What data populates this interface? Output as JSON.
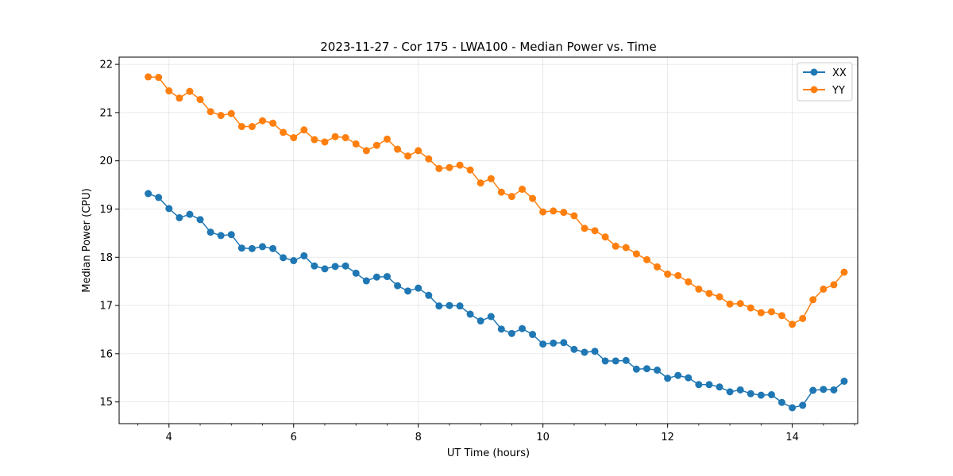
{
  "chart_data": {
    "type": "line",
    "title": "2023-11-27 - Cor 175 - LWA100 - Median Power vs. Time",
    "xlabel": "UT Time (hours)",
    "ylabel": "Median Power (CPU)",
    "xlim": [
      3.2,
      15.05
    ],
    "ylim": [
      14.55,
      22.15
    ],
    "x_ticks": [
      4,
      6,
      8,
      10,
      12,
      14
    ],
    "y_ticks": [
      15,
      16,
      17,
      18,
      19,
      20,
      21,
      22
    ],
    "grid": true,
    "legend_position": "top-right",
    "x": [
      3.667,
      3.833,
      4.0,
      4.167,
      4.333,
      4.5,
      4.667,
      4.833,
      5.0,
      5.167,
      5.333,
      5.5,
      5.667,
      5.833,
      6.0,
      6.167,
      6.333,
      6.5,
      6.667,
      6.833,
      7.0,
      7.167,
      7.333,
      7.5,
      7.667,
      7.833,
      8.0,
      8.167,
      8.333,
      8.5,
      8.667,
      8.833,
      9.0,
      9.167,
      9.333,
      9.5,
      9.667,
      9.833,
      10.0,
      10.167,
      10.333,
      10.5,
      10.667,
      10.833,
      11.0,
      11.167,
      11.333,
      11.5,
      11.667,
      11.833,
      12.0,
      12.167,
      12.333,
      12.5,
      12.667,
      12.833,
      13.0,
      13.167,
      13.333,
      13.5,
      13.667,
      13.833,
      14.0,
      14.167,
      14.333,
      14.5,
      14.667,
      14.833
    ],
    "series": [
      {
        "name": "XX",
        "color": "#1f77b4",
        "values": [
          19.32,
          19.24,
          19.01,
          18.82,
          18.89,
          18.78,
          18.52,
          18.45,
          18.47,
          18.19,
          18.18,
          18.22,
          18.18,
          17.99,
          17.93,
          18.03,
          17.82,
          17.76,
          17.81,
          17.82,
          17.67,
          17.51,
          17.59,
          17.6,
          17.41,
          17.3,
          17.36,
          17.21,
          16.99,
          17.0,
          16.99,
          16.82,
          16.68,
          16.77,
          16.51,
          16.42,
          16.52,
          16.4,
          16.2,
          16.22,
          16.23,
          16.09,
          16.03,
          16.05,
          15.85,
          15.85,
          15.86,
          15.68,
          15.69,
          15.66,
          15.49,
          15.55,
          15.5,
          15.36,
          15.36,
          15.31,
          15.21,
          15.25,
          15.17,
          15.14,
          15.15,
          14.99,
          14.88,
          14.93,
          15.24,
          15.26,
          15.25,
          15.43
        ]
      },
      {
        "name": "YY",
        "color": "#ff7f0e",
        "values": [
          21.74,
          21.73,
          21.45,
          21.3,
          21.44,
          21.27,
          21.02,
          20.94,
          20.98,
          20.71,
          20.71,
          20.83,
          20.78,
          20.59,
          20.48,
          20.64,
          20.44,
          20.39,
          20.5,
          20.48,
          20.35,
          20.21,
          20.32,
          20.45,
          20.24,
          20.1,
          20.21,
          20.04,
          19.84,
          19.86,
          19.91,
          19.81,
          19.54,
          19.63,
          19.35,
          19.26,
          19.41,
          19.22,
          18.94,
          18.96,
          18.93,
          18.86,
          18.6,
          18.55,
          18.42,
          18.23,
          18.2,
          18.07,
          17.95,
          17.8,
          17.65,
          17.62,
          17.49,
          17.34,
          17.25,
          17.18,
          17.03,
          17.04,
          16.95,
          16.85,
          16.87,
          16.79,
          16.61,
          16.73,
          17.12,
          17.34,
          17.43,
          17.69
        ]
      }
    ]
  }
}
